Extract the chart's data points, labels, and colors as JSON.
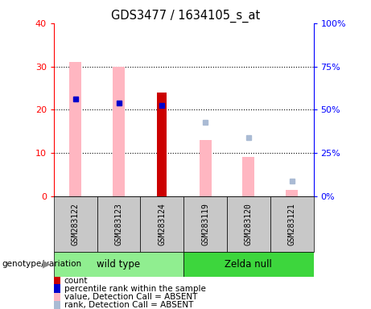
{
  "title": "GDS3477 / 1634105_s_at",
  "categories": [
    "GSM283122",
    "GSM283123",
    "GSM283124",
    "GSM283119",
    "GSM283120",
    "GSM283121"
  ],
  "ylim_left": [
    0,
    40
  ],
  "ylim_right": [
    0,
    100
  ],
  "yticks_left": [
    0,
    10,
    20,
    30,
    40
  ],
  "yticks_right": [
    0,
    25,
    50,
    75,
    100
  ],
  "ytick_labels_left": [
    "0",
    "10",
    "20",
    "30",
    "40"
  ],
  "ytick_labels_right": [
    "0%",
    "25%",
    "50%",
    "75%",
    "100%"
  ],
  "pink_bars": [
    31,
    30,
    0,
    13,
    9,
    1.5
  ],
  "dark_red_bars": [
    0,
    0,
    24,
    0,
    0,
    0
  ],
  "blue_squares_left": [
    22.5,
    21.5,
    21.0,
    null,
    null,
    null
  ],
  "light_blue_squares_left": [
    null,
    null,
    null,
    17.0,
    13.5,
    3.5
  ],
  "wt_color": "#90EE90",
  "zn_color": "#3DD63D",
  "gray_box_color": "#C8C8C8",
  "legend_items": [
    {
      "color": "#CC0000",
      "label": "count"
    },
    {
      "color": "#0000CC",
      "label": "percentile rank within the sample"
    },
    {
      "color": "#FFB6C1",
      "label": "value, Detection Call = ABSENT"
    },
    {
      "color": "#AABBD4",
      "label": "rank, Detection Call = ABSENT"
    }
  ]
}
